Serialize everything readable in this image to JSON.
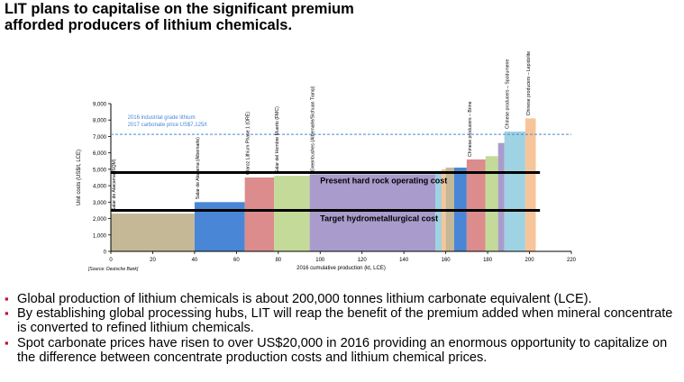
{
  "page": {
    "title_lines": [
      "LIT plans to capitalise on the significant premium",
      "afforded producers of lithium chemicals."
    ],
    "bullet_marker": "▪",
    "bullets": [
      "Global production of lithium chemicals is about 200,000 tonnes lithium carbonate equivalent (LCE).",
      "By establishing global processing hubs, LIT will reap the benefit of the premium added when mineral concentrate is converted to refined lithium chemicals.",
      "Spot carbonate prices have risen to over US$20,000 in 2016 providing an enormous opportunity to capitalize on the difference between concentrate production costs and lithium chemical prices."
    ]
  },
  "chart_data": {
    "type": "bar",
    "subtype": "cost-curve",
    "ylabel": "Unit costs (US$/t, LCE)",
    "xlabel": "2016 cumulative production (kt, LCE)",
    "source": "[Source: Deutsche Bank]",
    "xlim": [
      0,
      220
    ],
    "ylim": [
      0,
      9000
    ],
    "xticks": [
      0,
      20,
      40,
      60,
      80,
      100,
      120,
      140,
      160,
      180,
      200,
      220
    ],
    "yticks": [
      0,
      1000,
      2000,
      3000,
      4000,
      5000,
      6000,
      7000,
      8000,
      9000
    ],
    "ytick_labels": [
      "0",
      "1,000",
      "2,000",
      "3,000",
      "4,000",
      "5,000",
      "6,000",
      "7,000",
      "8,000",
      "9,000"
    ],
    "bars": [
      {
        "x0": 0,
        "x1": 40,
        "value": 2300,
        "color": "#c4b896",
        "label": "Salar de Atacama (SQM)"
      },
      {
        "x0": 40,
        "x1": 64,
        "value": 3000,
        "color": "#4a86d6",
        "label": "Salar de Atacama (Albemarle)"
      },
      {
        "x0": 64,
        "x1": 78,
        "value": 4500,
        "color": "#dc8c8c",
        "label": "Olaroz Lithium Phase 1 (ORE)"
      },
      {
        "x0": 78,
        "x1": 95,
        "value": 4600,
        "color": "#c3da98",
        "label": "Salar del Hombre Muerto (FMC)"
      },
      {
        "x0": 95,
        "x1": 155,
        "value": 4700,
        "color": "#a99ccc",
        "label": "Greenbushes (Albemarle/Sichuan Tianqi)"
      },
      {
        "x0": 155,
        "x1": 158,
        "value": 4900,
        "color": "#9fd2e2",
        "label": ""
      },
      {
        "x0": 158,
        "x1": 160,
        "value": 5000,
        "color": "#f7c59a",
        "label": ""
      },
      {
        "x0": 160,
        "x1": 164,
        "value": 5100,
        "color": "#c4b896",
        "label": ""
      },
      {
        "x0": 164,
        "x1": 170,
        "value": 5100,
        "color": "#4a86d6",
        "label": ""
      },
      {
        "x0": 170,
        "x1": 179,
        "value": 5600,
        "color": "#dc8c8c",
        "label": "Chinese producers – Brine"
      },
      {
        "x0": 179,
        "x1": 185,
        "value": 5800,
        "color": "#c3da98",
        "label": ""
      },
      {
        "x0": 185,
        "x1": 188,
        "value": 6600,
        "color": "#a99ccc",
        "label": ""
      },
      {
        "x0": 188,
        "x1": 198,
        "value": 7300,
        "color": "#9fd2e2",
        "label": "Chinese producers – Spodumene"
      },
      {
        "x0": 198,
        "x1": 203,
        "value": 8100,
        "color": "#f7c59a",
        "label": "Chinese producers – Lepidolite"
      }
    ],
    "reference_lines": [
      {
        "value": 7125,
        "style": "dashed",
        "color": "#4a86d6",
        "label_lines": [
          "2016 industrial grade lithium",
          "2017 carbonate price US$7,125/t"
        ]
      },
      {
        "value": 4800,
        "style": "solid",
        "color": "#000000",
        "label": "Present hard rock operating cost"
      },
      {
        "value": 2500,
        "style": "solid",
        "color": "#000000",
        "label": "Target hydrometallurgical cost"
      }
    ],
    "grid": false,
    "legend": "none"
  }
}
